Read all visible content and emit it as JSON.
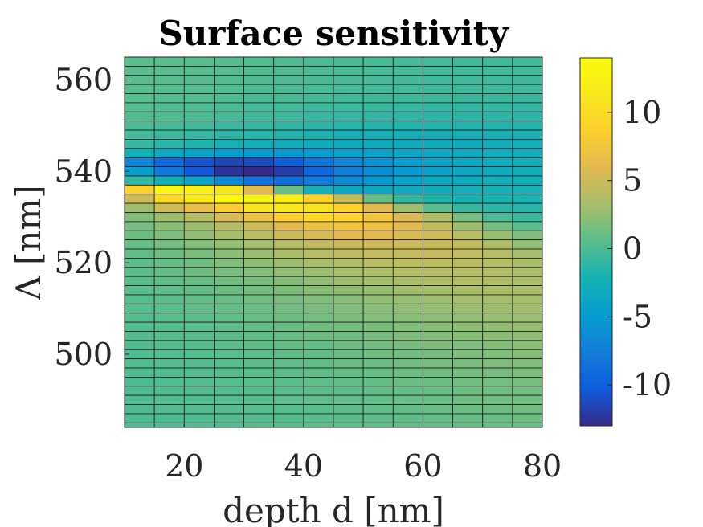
{
  "chart_data": {
    "type": "heatmap",
    "title": "Surface sensitivity",
    "xlabel": "depth d [nm]",
    "ylabel": "Λ [nm]",
    "x": [
      10,
      15,
      20,
      25,
      30,
      35,
      40,
      45,
      50,
      55,
      60,
      65,
      70,
      75
    ],
    "xlim": [
      10,
      80
    ],
    "ylim": [
      484,
      565
    ],
    "y_step": 2,
    "xticks": [
      "20",
      "40",
      "60",
      "80"
    ],
    "xtick_values": [
      20,
      40,
      60,
      80
    ],
    "yticks": [
      "500",
      "520",
      "540",
      "560"
    ],
    "ytick_values": [
      500,
      520,
      540,
      560
    ],
    "colorbar": {
      "min": -13,
      "max": 14,
      "ticks": [
        "-10",
        "-5",
        "0",
        "5",
        "10"
      ],
      "tick_values": [
        -10,
        -5,
        0,
        5,
        10
      ],
      "colormap": "parula"
    },
    "rows": [
      {
        "y": 564,
        "values": [
          0.5,
          0.5,
          0.4,
          0.3,
          0.2,
          0.1,
          0.0,
          -0.1,
          -0.2,
          -0.3,
          -0.3,
          -0.4,
          -0.4,
          -0.4
        ]
      },
      {
        "y": 562,
        "values": [
          0.5,
          0.5,
          0.4,
          0.3,
          0.2,
          0.1,
          0.0,
          -0.1,
          -0.2,
          -0.3,
          -0.4,
          -0.4,
          -0.4,
          -0.5
        ]
      },
      {
        "y": 560,
        "values": [
          0.5,
          0.4,
          0.3,
          0.2,
          0.1,
          0.0,
          -0.1,
          -0.2,
          -0.3,
          -0.4,
          -0.5,
          -0.5,
          -0.5,
          -0.6
        ]
      },
      {
        "y": 558,
        "values": [
          0.4,
          0.4,
          0.3,
          0.2,
          0.0,
          -0.1,
          -0.2,
          -0.3,
          -0.4,
          -0.5,
          -0.6,
          -0.6,
          -0.6,
          -0.7
        ]
      },
      {
        "y": 556,
        "values": [
          0.4,
          0.3,
          0.2,
          0.1,
          -0.1,
          -0.2,
          -0.4,
          -0.5,
          -0.6,
          -0.7,
          -0.7,
          -0.8,
          -0.8,
          -0.8
        ]
      },
      {
        "y": 554,
        "values": [
          0.3,
          0.2,
          0.1,
          -0.1,
          -0.3,
          -0.4,
          -0.6,
          -0.7,
          -0.8,
          -0.9,
          -1.0,
          -1.0,
          -1.0,
          -1.0
        ]
      },
      {
        "y": 552,
        "values": [
          0.2,
          0.1,
          -0.1,
          -0.3,
          -0.5,
          -0.7,
          -0.9,
          -1.0,
          -1.1,
          -1.2,
          -1.3,
          -1.3,
          -1.3,
          -1.3
        ]
      },
      {
        "y": 550,
        "values": [
          0.0,
          -0.2,
          -0.4,
          -0.7,
          -0.9,
          -1.1,
          -1.3,
          -1.5,
          -1.6,
          -1.7,
          -1.7,
          -1.7,
          -1.7,
          -1.6
        ]
      },
      {
        "y": 548,
        "values": [
          -0.3,
          -0.6,
          -0.9,
          -1.2,
          -1.5,
          -1.7,
          -1.9,
          -2.1,
          -2.2,
          -2.3,
          -2.3,
          -2.2,
          -2.1,
          -2.0
        ]
      },
      {
        "y": 546,
        "values": [
          -0.9,
          -1.4,
          -1.8,
          -2.2,
          -2.6,
          -2.8,
          -3.0,
          -3.1,
          -3.1,
          -3.1,
          -3.0,
          -2.9,
          -2.7,
          -2.5
        ]
      },
      {
        "y": 544,
        "values": [
          -2.5,
          -3.5,
          -4.3,
          -4.9,
          -5.2,
          -5.2,
          -5.0,
          -4.6,
          -4.2,
          -3.9,
          -3.6,
          -3.3,
          -3.0,
          -2.8
        ]
      },
      {
        "y": 542,
        "values": [
          -7.0,
          -9.5,
          -10.8,
          -11.5,
          -11.2,
          -10.0,
          -8.5,
          -7.0,
          -5.8,
          -4.8,
          -4.0,
          -3.5,
          -3.0,
          -2.6
        ]
      },
      {
        "y": 540,
        "values": [
          -4.5,
          -8.0,
          -10.5,
          -12.5,
          -13.0,
          -12.0,
          -9.5,
          -7.5,
          -6.0,
          -5.0,
          -4.2,
          -3.6,
          -3.1,
          -2.7
        ]
      },
      {
        "y": 538,
        "values": [
          -1.0,
          -2.5,
          -4.0,
          -6.5,
          -8.5,
          -9.0,
          -8.0,
          -6.5,
          -5.2,
          -4.3,
          -3.6,
          -3.1,
          -2.7,
          -2.4
        ]
      },
      {
        "y": 536,
        "values": [
          9.0,
          13.5,
          12.5,
          11.0,
          6.0,
          1.0,
          -2.5,
          -3.5,
          -3.5,
          -3.2,
          -2.9,
          -2.6,
          -2.3,
          -2.1
        ]
      },
      {
        "y": 534,
        "values": [
          5.0,
          9.5,
          11.5,
          13.5,
          13.0,
          12.0,
          9.0,
          4.5,
          1.0,
          -1.0,
          -1.8,
          -2.0,
          -2.0,
          -1.9
        ]
      },
      {
        "y": 532,
        "values": [
          3.0,
          5.0,
          6.5,
          8.5,
          11.0,
          11.5,
          11.0,
          9.0,
          6.0,
          3.0,
          0.5,
          -0.8,
          -1.3,
          -1.5
        ]
      },
      {
        "y": 530,
        "values": [
          2.0,
          3.0,
          4.0,
          5.5,
          7.0,
          8.5,
          9.5,
          9.0,
          7.5,
          5.5,
          3.5,
          1.5,
          0.0,
          -0.8
        ]
      },
      {
        "y": 528,
        "values": [
          1.5,
          2.2,
          3.0,
          4.0,
          5.0,
          6.0,
          7.0,
          7.5,
          7.0,
          6.0,
          4.5,
          3.0,
          1.5,
          0.5
        ]
      },
      {
        "y": 526,
        "values": [
          1.2,
          1.8,
          2.5,
          3.2,
          4.0,
          4.8,
          5.5,
          6.0,
          6.0,
          5.5,
          5.0,
          4.0,
          2.8,
          1.8
        ]
      },
      {
        "y": 524,
        "values": [
          1.0,
          1.5,
          2.0,
          2.6,
          3.3,
          4.0,
          4.6,
          5.0,
          5.2,
          5.0,
          4.8,
          4.5,
          3.6,
          2.6
        ]
      },
      {
        "y": 522,
        "values": [
          0.8,
          1.2,
          1.7,
          2.2,
          2.8,
          3.4,
          4.0,
          4.3,
          4.6,
          4.7,
          4.6,
          4.4,
          4.0,
          3.2
        ]
      },
      {
        "y": 520,
        "values": [
          0.7,
          1.0,
          1.4,
          1.9,
          2.4,
          2.9,
          3.4,
          3.8,
          4.1,
          4.3,
          4.3,
          4.2,
          3.9,
          3.4
        ]
      },
      {
        "y": 518,
        "values": [
          0.6,
          0.9,
          1.2,
          1.6,
          2.0,
          2.5,
          2.9,
          3.3,
          3.6,
          3.9,
          4.0,
          4.0,
          3.8,
          3.5
        ]
      },
      {
        "y": 516,
        "values": [
          0.5,
          0.8,
          1.0,
          1.4,
          1.7,
          2.1,
          2.5,
          2.9,
          3.2,
          3.5,
          3.7,
          3.8,
          3.7,
          3.5
        ]
      },
      {
        "y": 514,
        "values": [
          0.5,
          0.7,
          0.9,
          1.2,
          1.5,
          1.8,
          2.2,
          2.5,
          2.8,
          3.1,
          3.3,
          3.5,
          3.5,
          3.4
        ]
      },
      {
        "y": 512,
        "values": [
          0.4,
          0.6,
          0.8,
          1.0,
          1.3,
          1.6,
          1.9,
          2.2,
          2.5,
          2.8,
          3.0,
          3.2,
          3.3,
          3.3
        ]
      },
      {
        "y": 510,
        "values": [
          0.4,
          0.5,
          0.7,
          0.9,
          1.1,
          1.4,
          1.7,
          1.9,
          2.2,
          2.5,
          2.7,
          2.9,
          3.0,
          3.1
        ]
      },
      {
        "y": 508,
        "values": [
          0.3,
          0.5,
          0.6,
          0.8,
          1.0,
          1.2,
          1.5,
          1.7,
          2.0,
          2.2,
          2.4,
          2.6,
          2.8,
          2.9
        ]
      },
      {
        "y": 506,
        "values": [
          0.3,
          0.4,
          0.5,
          0.7,
          0.9,
          1.1,
          1.3,
          1.5,
          1.7,
          2.0,
          2.2,
          2.4,
          2.5,
          2.7
        ]
      },
      {
        "y": 504,
        "values": [
          0.3,
          0.4,
          0.5,
          0.6,
          0.8,
          1.0,
          1.2,
          1.4,
          1.6,
          1.8,
          2.0,
          2.2,
          2.3,
          2.5
        ]
      },
      {
        "y": 502,
        "values": [
          0.2,
          0.3,
          0.4,
          0.6,
          0.7,
          0.9,
          1.0,
          1.2,
          1.4,
          1.6,
          1.8,
          1.9,
          2.1,
          2.3
        ]
      },
      {
        "y": 500,
        "values": [
          0.2,
          0.3,
          0.4,
          0.5,
          0.6,
          0.8,
          0.9,
          1.1,
          1.3,
          1.4,
          1.6,
          1.8,
          1.9,
          2.1
        ]
      },
      {
        "y": 498,
        "values": [
          0.2,
          0.3,
          0.3,
          0.4,
          0.6,
          0.7,
          0.8,
          1.0,
          1.1,
          1.3,
          1.5,
          1.6,
          1.8,
          1.9
        ]
      },
      {
        "y": 496,
        "values": [
          0.2,
          0.2,
          0.3,
          0.4,
          0.5,
          0.6,
          0.8,
          0.9,
          1.0,
          1.2,
          1.3,
          1.5,
          1.6,
          1.8
        ]
      },
      {
        "y": 494,
        "values": [
          0.1,
          0.2,
          0.3,
          0.4,
          0.5,
          0.6,
          0.7,
          0.8,
          0.9,
          1.1,
          1.2,
          1.4,
          1.5,
          1.6
        ]
      },
      {
        "y": 492,
        "values": [
          0.1,
          0.2,
          0.3,
          0.3,
          0.4,
          0.5,
          0.6,
          0.7,
          0.9,
          1.0,
          1.1,
          1.3,
          1.4,
          1.5
        ]
      },
      {
        "y": 490,
        "values": [
          0.1,
          0.2,
          0.2,
          0.3,
          0.4,
          0.5,
          0.6,
          0.7,
          0.8,
          0.9,
          1.0,
          1.2,
          1.3,
          1.4
        ]
      },
      {
        "y": 488,
        "values": [
          0.1,
          0.2,
          0.2,
          0.3,
          0.4,
          0.4,
          0.5,
          0.6,
          0.7,
          0.8,
          1.0,
          1.1,
          1.2,
          1.3
        ]
      },
      {
        "y": 486,
        "values": [
          0.1,
          0.1,
          0.2,
          0.3,
          0.3,
          0.4,
          0.5,
          0.6,
          0.7,
          0.8,
          0.9,
          1.0,
          1.1,
          1.2
        ]
      },
      {
        "y": 484,
        "values": [
          0.1,
          0.1,
          0.2,
          0.2,
          0.3,
          0.4,
          0.5,
          0.6,
          0.6,
          0.7,
          0.8,
          0.9,
          1.0,
          1.1
        ]
      }
    ]
  }
}
